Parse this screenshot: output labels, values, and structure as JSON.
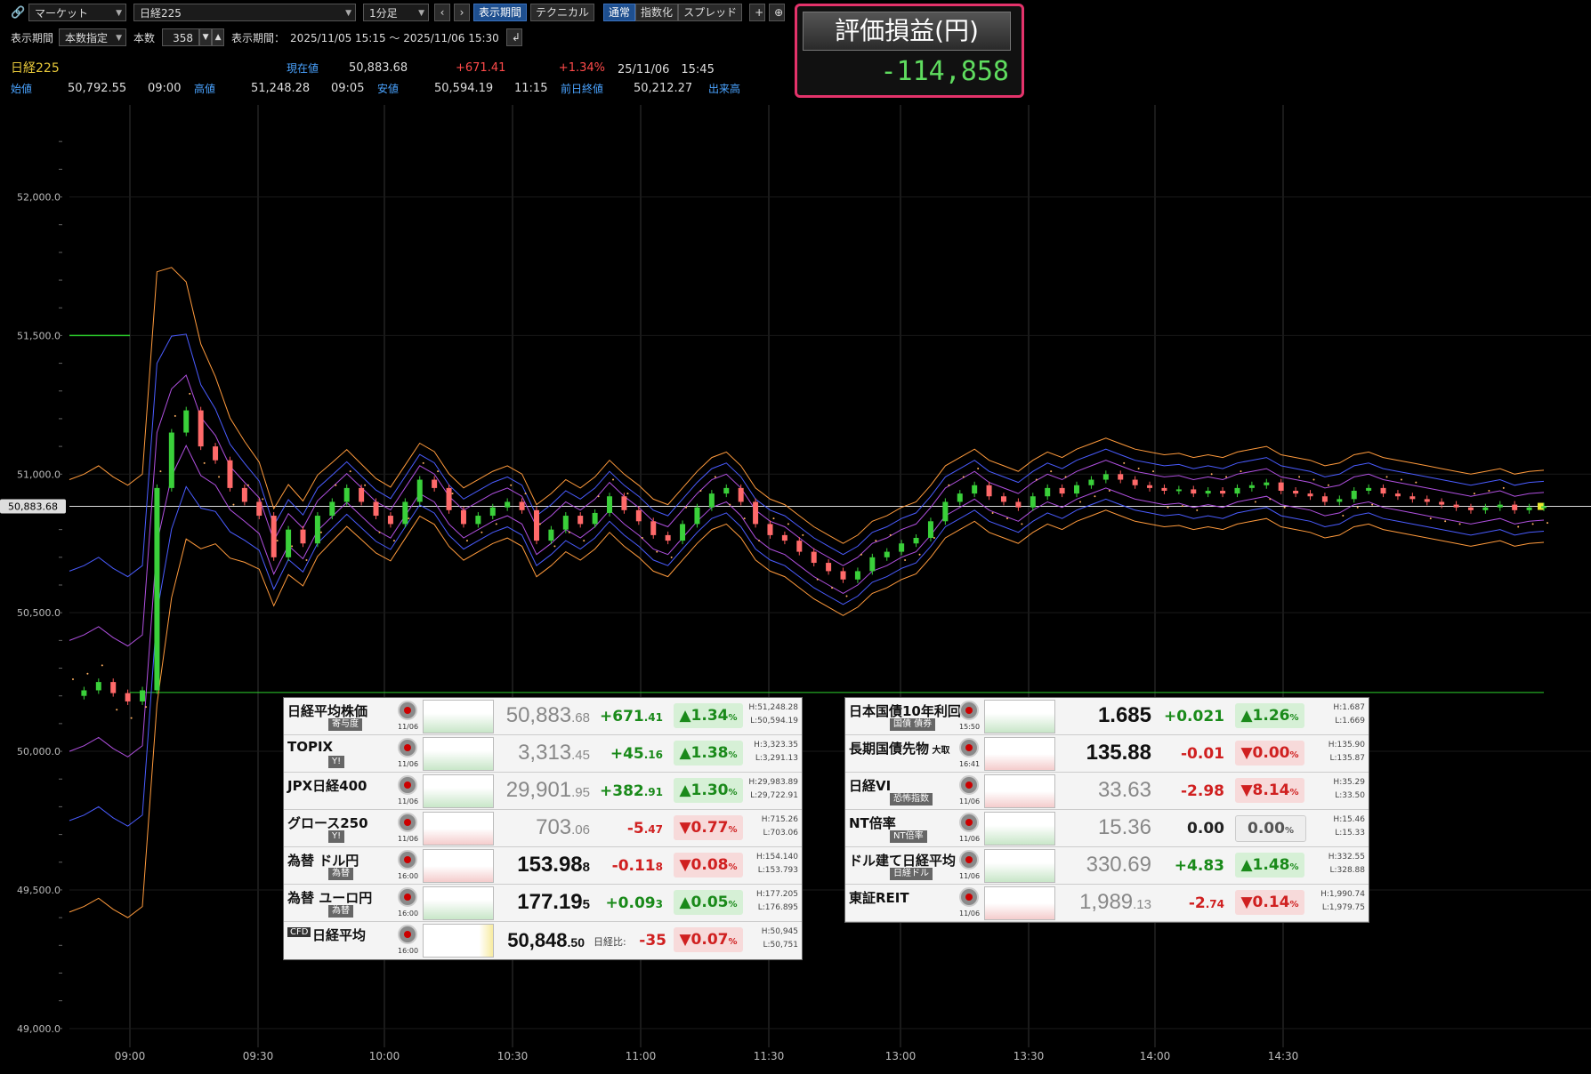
{
  "toolbar": {
    "market_select": "マーケット",
    "symbol_select": "日経225",
    "interval_select": "1分足",
    "prev_label": "‹",
    "next_label": "›",
    "display_period_btn": "表示期間",
    "technical_btn": "テクニカル",
    "normal_btn": "通常",
    "index_btn": "指数化",
    "spread_btn": "スプレッド",
    "plus_label": "+",
    "zoom_label": "⊕",
    "period_label": "表示期間",
    "period_mode": "本数指定",
    "count_label": "本数",
    "count_value": "358",
    "period_text_label": "表示期間：",
    "period_range": "2025/11/05 15:15 ～ 2025/11/06 15:30"
  },
  "quote": {
    "symbol": "日経225",
    "current_label": "現在値",
    "current_value": "50,883.68",
    "change": "+671.41",
    "change_pct": "+1.34%",
    "datetime": "25/11/06　15:45",
    "open_label": "始値",
    "open_value": "50,792.55",
    "open_time": "09:00",
    "high_label": "高値",
    "high_value": "51,248.28",
    "high_time": "09:05",
    "low_label": "安値",
    "low_value": "50,594.19",
    "low_time": "11:15",
    "prev_close_label": "前日終値",
    "prev_close_value": "50,212.27",
    "volume_label": "出来高"
  },
  "pl": {
    "title": "評価損益(円)",
    "value": "-114,858"
  },
  "chart_data": {
    "type": "line",
    "title": "",
    "ylim": [
      48900,
      52300
    ],
    "y_ticks": [
      "52,000.0",
      "51,500.0",
      "51,000.0",
      "50,500.0",
      "50,000.0",
      "49,500.0",
      "49,000.0"
    ],
    "x_ticks": [
      "09:00",
      "09:30",
      "10:00",
      "10:30",
      "11:00",
      "11:30",
      "13:00",
      "13:30",
      "14:00",
      "14:30"
    ],
    "current_label": "50,883.68",
    "current_value": 50883.68,
    "hline_green_upper": 51500,
    "hline_green_lower": 50212.27,
    "price_series": [
      50200,
      50220,
      50250,
      50210,
      50180,
      50220,
      50950,
      51150,
      51230,
      51100,
      51050,
      50950,
      50900,
      50850,
      50700,
      50800,
      50750,
      50850,
      50900,
      50950,
      50900,
      50850,
      50820,
      50900,
      50980,
      50950,
      50870,
      50820,
      50850,
      50880,
      50900,
      50870,
      50760,
      50800,
      50850,
      50820,
      50860,
      50920,
      50870,
      50830,
      50780,
      50760,
      50820,
      50880,
      50930,
      50950,
      50900,
      50820,
      50780,
      50760,
      50720,
      50680,
      50650,
      50620,
      50650,
      50700,
      50720,
      50750,
      50770,
      50830,
      50900,
      50930,
      50960,
      50920,
      50900,
      50880,
      50920,
      50950,
      50930,
      50960,
      50980,
      51000,
      50980,
      50960,
      50950,
      50940,
      50945,
      50930,
      50940,
      50930,
      50950,
      50960,
      50970,
      50940,
      50930,
      50920,
      50900,
      50910,
      50940,
      50950,
      50930,
      50920,
      50910,
      50900,
      50890,
      50880,
      50870,
      50880,
      50890,
      50870,
      50880,
      50884
    ]
  },
  "panel_left": {
    "rows": [
      {
        "name": "日経平均株価",
        "sub": "寄与度",
        "date": "11/06",
        "price_main": "50,883",
        "price_dec": ".68",
        "change": "+671",
        "change_dec": ".41",
        "pct": "▲1.34",
        "pct_unit": "%",
        "high": "H:51,248.28",
        "low": "L:50,594.19",
        "dir": "up",
        "strong": false
      },
      {
        "name": "TOPIX",
        "sub": "Y!",
        "date": "11/06",
        "price_main": "3,313",
        "price_dec": ".45",
        "change": "+45",
        "change_dec": ".16",
        "pct": "▲1.38",
        "pct_unit": "%",
        "high": "H:3,323.35",
        "low": "L:3,291.13",
        "dir": "up",
        "strong": false
      },
      {
        "name": "JPX日経400",
        "sub": "",
        "date": "11/06",
        "price_main": "29,901",
        "price_dec": ".95",
        "change": "+382",
        "change_dec": ".91",
        "pct": "▲1.30",
        "pct_unit": "%",
        "high": "H:29,983.89",
        "low": "L:29,722.91",
        "dir": "up",
        "strong": false
      },
      {
        "name": "グロース250",
        "sub": "Y!",
        "date": "11/06",
        "price_main": "703",
        "price_dec": ".06",
        "change": "-5",
        "change_dec": ".47",
        "pct": "▼0.77",
        "pct_unit": "%",
        "high": "H:715.26",
        "low": "L:703.06",
        "dir": "dn",
        "strong": false
      },
      {
        "name": "為替 ドル円",
        "sub": "為替",
        "date": "16:00",
        "price_main": "153.98",
        "price_dec": "8",
        "change": "-0.11",
        "change_dec": "8",
        "pct": "▼0.08",
        "pct_unit": "%",
        "high": "H:154.140",
        "low": "L:153.793",
        "dir": "dn",
        "strong": true
      },
      {
        "name": "為替 ユーロ円",
        "sub": "為替",
        "date": "16:00",
        "price_main": "177.19",
        "price_dec": "5",
        "change": "+0.09",
        "change_dec": "3",
        "pct": "▲0.05",
        "pct_unit": "%",
        "high": "H:177.205",
        "low": "L:176.895",
        "dir": "up",
        "strong": true
      }
    ],
    "cfd": {
      "tag": "CFD",
      "name": "日経平均",
      "date": "16:00",
      "price_main": "50,848",
      "price_dec": ".50",
      "ratio_label": "日経比:",
      "change": "-35",
      "pct": "▼0.07",
      "pct_unit": "%",
      "high": "H:50,945",
      "low": "L:50,751"
    }
  },
  "panel_right": {
    "rows": [
      {
        "name": "日本国債10年利回り",
        "sub": "国債 債券",
        "date": "15:50",
        "price_main": "1.685",
        "price_dec": "",
        "change": "+0.021",
        "change_dec": "",
        "pct": "▲1.26",
        "pct_unit": "%",
        "high": "H:1.687",
        "low": "L:1.669",
        "dir": "up",
        "strong": true
      },
      {
        "name": "長期国債先物",
        "name_tag": "大取",
        "sub": "",
        "date": "16:41",
        "price_main": "135.88",
        "price_dec": "",
        "change": "-0.01",
        "change_dec": "",
        "pct": "▼0.00",
        "pct_unit": "%",
        "high": "H:135.90",
        "low": "L:135.87",
        "dir": "dn",
        "strong": true
      },
      {
        "name": "日経VI",
        "sub": "恐怖指数",
        "date": "11/06",
        "price_main": "33.63",
        "price_dec": "",
        "change": "-2.98",
        "change_dec": "",
        "pct": "▼8.14",
        "pct_unit": "%",
        "high": "H:35.29",
        "low": "L:33.50",
        "dir": "dn",
        "strong": false
      },
      {
        "name": "NT倍率",
        "sub": "NT倍率",
        "date": "11/06",
        "price_main": "15.36",
        "price_dec": "",
        "change": "0.00",
        "change_dec": "",
        "pct": "0.00",
        "pct_unit": "%",
        "high": "H:15.46",
        "low": "L:15.33",
        "dir": "zero",
        "strong": false
      },
      {
        "name": "ドル建て日経平均",
        "sub": "日経ドル",
        "date": "11/06",
        "price_main": "330.69",
        "price_dec": "",
        "change": "+4.83",
        "change_dec": "",
        "pct": "▲1.48",
        "pct_unit": "%",
        "high": "H:332.55",
        "low": "L:328.88",
        "dir": "up",
        "strong": false
      },
      {
        "name": "東証REIT",
        "sub": "",
        "date": "11/06",
        "price_main": "1,989",
        "price_dec": ".13",
        "change": "-2",
        "change_dec": ".74",
        "pct": "▼0.14",
        "pct_unit": "%",
        "high": "H:1,990.74",
        "low": "L:1,979.75",
        "dir": "dn",
        "strong": false
      }
    ]
  }
}
